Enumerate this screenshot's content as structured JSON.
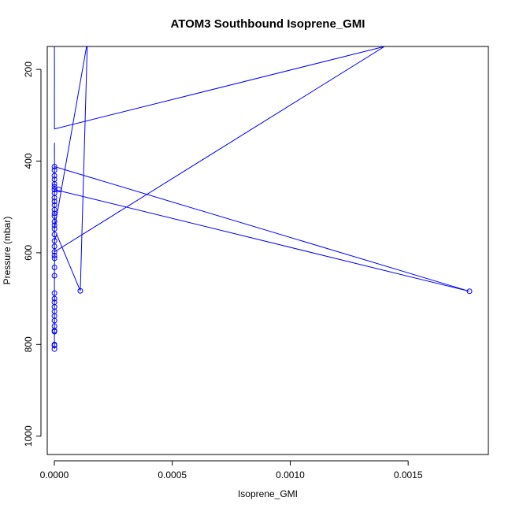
{
  "chart_data": {
    "type": "line",
    "title": "ATOM3 Southbound Isoprene_GMI",
    "xlabel": "Isoprene_GMI",
    "ylabel": "Pressure (mbar)",
    "xlim": [
      -3e-05,
      0.00184
    ],
    "ylim": [
      1040,
      150
    ],
    "y_reversed": true,
    "x_ticks": [
      0.0,
      0.0005,
      0.001,
      0.0015
    ],
    "x_tick_labels": [
      "0.0000",
      "0.0005",
      "0.0010",
      "0.0015"
    ],
    "y_ticks": [
      200,
      400,
      600,
      800,
      1000
    ],
    "y_tick_labels": [
      "200",
      "400",
      "600",
      "800",
      "1000"
    ],
    "grid": false,
    "legend": "none",
    "marker": "open-circle",
    "series": [
      {
        "color": "#0000ff",
        "points": [
          [
            4e-07,
            810
          ],
          [
            3e-07,
            802
          ],
          [
            5e-07,
            772
          ],
          [
            4e-07,
            760
          ],
          [
            6e-07,
            745
          ],
          [
            5e-07,
            728
          ],
          [
            4e-07,
            712
          ],
          [
            6e-07,
            700
          ],
          [
            5e-07,
            688
          ],
          [
            4e-07,
            650
          ],
          [
            6e-07,
            632
          ],
          [
            8e-07,
            612
          ],
          [
            5e-07,
            598
          ],
          [
            3e-07,
            586
          ],
          [
            6e-07,
            574
          ],
          [
            1e-05,
            560
          ],
          [
            0.00011,
            683
          ],
          [
            0.00014,
            140
          ],
          [
            5e-07,
            548
          ],
          [
            6e-07,
            532
          ],
          [
            4e-07,
            520
          ],
          [
            7e-07,
            508
          ],
          [
            5e-07,
            496
          ],
          [
            6e-07,
            484
          ],
          [
            3e-07,
            472
          ],
          [
            6e-07,
            462
          ],
          [
            0.00176,
            684
          ],
          [
            4e-07,
            412
          ],
          [
            6e-07,
            400
          ],
          [
            4e-07,
            380
          ],
          [
            6e-07,
            360
          ],
          [
            5e-07,
            598
          ],
          [
            0.0014,
            150
          ],
          [
            5e-07,
            330
          ],
          [
            6e-07,
            300
          ],
          [
            4e-07,
            270
          ],
          [
            5e-07,
            240
          ],
          [
            6e-07,
            210
          ],
          [
            5e-07,
            180
          ],
          [
            4e-07,
            150
          ]
        ]
      }
    ],
    "circle_points": [
      [
        4e-07,
        810
      ],
      [
        3e-07,
        802
      ],
      [
        5e-07,
        800
      ],
      [
        5e-07,
        772
      ],
      [
        4e-07,
        770
      ],
      [
        6e-07,
        760
      ],
      [
        5e-07,
        748
      ],
      [
        4e-07,
        738
      ],
      [
        6e-07,
        728
      ],
      [
        5e-07,
        718
      ],
      [
        4e-07,
        708
      ],
      [
        6e-07,
        700
      ],
      [
        5e-07,
        688
      ],
      [
        4e-07,
        650
      ],
      [
        6e-07,
        632
      ],
      [
        8e-07,
        612
      ],
      [
        5e-07,
        606
      ],
      [
        6e-07,
        598
      ],
      [
        4e-07,
        586
      ],
      [
        6e-07,
        574
      ],
      [
        5e-07,
        560
      ],
      [
        6e-07,
        548
      ],
      [
        4e-07,
        540
      ],
      [
        7e-07,
        532
      ],
      [
        5e-07,
        520
      ],
      [
        6e-07,
        514
      ],
      [
        4e-07,
        506
      ],
      [
        6e-07,
        496
      ],
      [
        5e-07,
        488
      ],
      [
        4e-07,
        480
      ],
      [
        6e-07,
        470
      ],
      [
        5e-07,
        462
      ],
      [
        4e-07,
        456
      ],
      [
        6e-07,
        450
      ],
      [
        5e-07,
        440
      ],
      [
        4e-07,
        432
      ],
      [
        6e-07,
        420
      ],
      [
        5e-07,
        412
      ],
      [
        1.9e-05,
        462
      ],
      [
        0.00011,
        683
      ],
      [
        0.00176,
        684
      ]
    ]
  }
}
